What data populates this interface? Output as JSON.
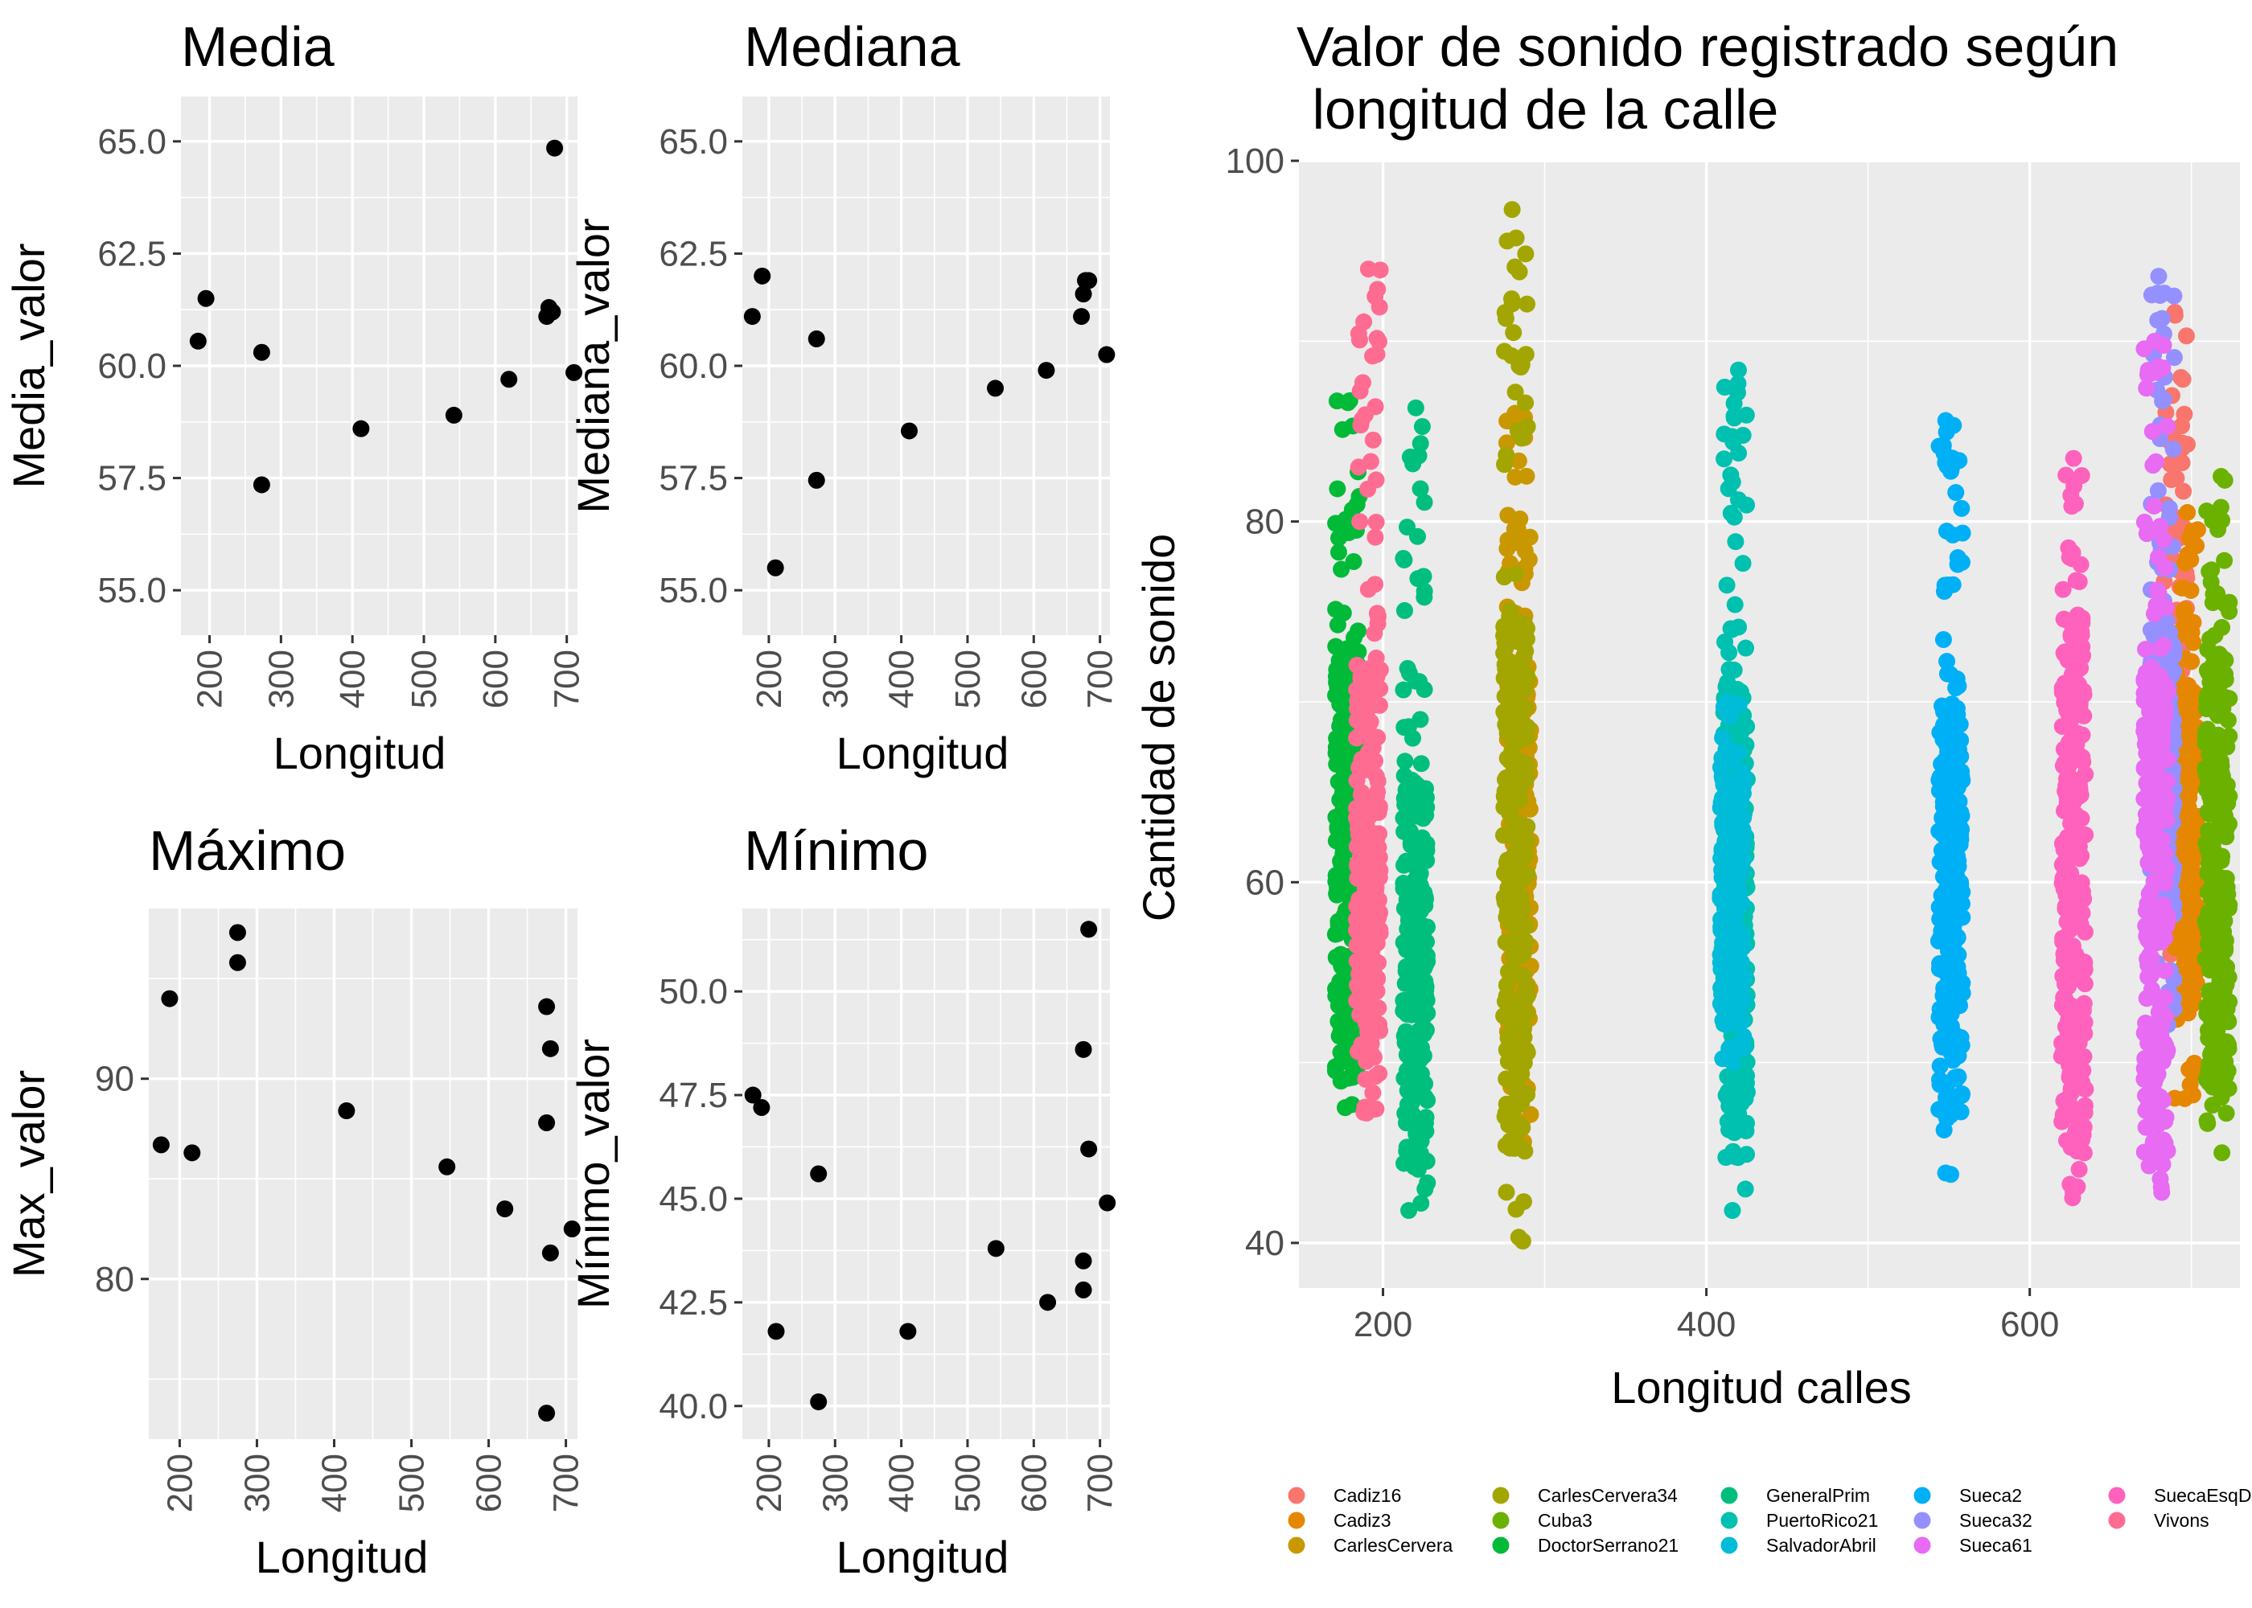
{
  "chart_data": [
    {
      "type": "scatter",
      "title": "Media",
      "xlabel": "Longitud",
      "ylabel": "Media_valor",
      "xlim": [
        160,
        715
      ],
      "ylim": [
        54.0,
        66.0
      ],
      "xticks": [
        200,
        300,
        400,
        500,
        600,
        700
      ],
      "yticks": [
        55.0,
        57.5,
        60.0,
        62.5,
        65.0
      ],
      "ytick_labels": [
        "55.0",
        "57.5",
        "60.0",
        "62.5",
        "65.0"
      ],
      "grid": true,
      "points": [
        {
          "x": 184,
          "y": 60.55
        },
        {
          "x": 195,
          "y": 61.5
        },
        {
          "x": 273,
          "y": 60.3
        },
        {
          "x": 273,
          "y": 57.35
        },
        {
          "x": 412,
          "y": 58.6
        },
        {
          "x": 542,
          "y": 58.9
        },
        {
          "x": 619,
          "y": 59.7
        },
        {
          "x": 672,
          "y": 61.1
        },
        {
          "x": 675,
          "y": 61.3
        },
        {
          "x": 680,
          "y": 61.2
        },
        {
          "x": 683,
          "y": 64.85
        },
        {
          "x": 710,
          "y": 59.85
        }
      ]
    },
    {
      "type": "scatter",
      "title": "Mediana",
      "xlabel": "Longitud",
      "ylabel": "Mediana_valor",
      "xlim": [
        160,
        715
      ],
      "ylim": [
        54.0,
        66.0
      ],
      "xticks": [
        200,
        300,
        400,
        500,
        600,
        700
      ],
      "yticks": [
        55.0,
        57.5,
        60.0,
        62.5,
        65.0
      ],
      "ytick_labels": [
        "55.0",
        "57.5",
        "60.0",
        "62.5",
        "65.0"
      ],
      "grid": true,
      "points": [
        {
          "x": 175,
          "y": 61.1
        },
        {
          "x": 190,
          "y": 62.0
        },
        {
          "x": 210,
          "y": 55.5
        },
        {
          "x": 272,
          "y": 60.6
        },
        {
          "x": 272,
          "y": 57.45
        },
        {
          "x": 412,
          "y": 58.55
        },
        {
          "x": 542,
          "y": 59.5
        },
        {
          "x": 619,
          "y": 59.9
        },
        {
          "x": 672,
          "y": 61.1
        },
        {
          "x": 675,
          "y": 61.6
        },
        {
          "x": 678,
          "y": 61.9
        },
        {
          "x": 683,
          "y": 61.9
        },
        {
          "x": 710,
          "y": 60.25
        }
      ]
    },
    {
      "type": "scatter",
      "title": "Máximo",
      "xlabel": "Longitud",
      "ylabel": "Max_valor",
      "xlim": [
        160,
        715
      ],
      "ylim": [
        72.0,
        98.5
      ],
      "xticks": [
        200,
        300,
        400,
        500,
        600,
        700
      ],
      "yticks": [
        80,
        90
      ],
      "ytick_labels": [
        "80",
        "90"
      ],
      "grid": true,
      "points": [
        {
          "x": 176,
          "y": 86.7
        },
        {
          "x": 187,
          "y": 94.0
        },
        {
          "x": 216,
          "y": 86.3
        },
        {
          "x": 275,
          "y": 97.3
        },
        {
          "x": 275,
          "y": 95.8
        },
        {
          "x": 416,
          "y": 88.4
        },
        {
          "x": 546,
          "y": 85.6
        },
        {
          "x": 621,
          "y": 83.5
        },
        {
          "x": 675,
          "y": 93.6
        },
        {
          "x": 675,
          "y": 87.8
        },
        {
          "x": 680,
          "y": 91.5
        },
        {
          "x": 680,
          "y": 81.3
        },
        {
          "x": 675,
          "y": 73.3
        },
        {
          "x": 708,
          "y": 82.5
        }
      ]
    },
    {
      "type": "scatter",
      "title": "Mínimo",
      "xlabel": "Longitud",
      "ylabel": "Mínimo_valor",
      "xlim": [
        160,
        715
      ],
      "ylim": [
        39.2,
        52.0
      ],
      "xticks": [
        200,
        300,
        400,
        500,
        600,
        700
      ],
      "yticks": [
        40.0,
        42.5,
        45.0,
        47.5,
        50.0
      ],
      "ytick_labels": [
        "40.0",
        "42.5",
        "45.0",
        "47.5",
        "50.0"
      ],
      "grid": true,
      "points": [
        {
          "x": 176,
          "y": 47.5
        },
        {
          "x": 189,
          "y": 47.2
        },
        {
          "x": 211,
          "y": 41.8
        },
        {
          "x": 275,
          "y": 45.6
        },
        {
          "x": 275,
          "y": 40.1
        },
        {
          "x": 410,
          "y": 41.8
        },
        {
          "x": 543,
          "y": 43.8
        },
        {
          "x": 621,
          "y": 42.5
        },
        {
          "x": 675,
          "y": 48.6
        },
        {
          "x": 675,
          "y": 43.5
        },
        {
          "x": 675,
          "y": 42.8
        },
        {
          "x": 683,
          "y": 51.5
        },
        {
          "x": 683,
          "y": 46.2
        },
        {
          "x": 711,
          "y": 44.9
        }
      ]
    },
    {
      "type": "scatter",
      "title": "Valor de sonido registrado según\n longitud de la calle",
      "title_lines": [
        "Valor de sonido registrado según",
        " longitud de la calle"
      ],
      "xlabel": "Longitud calles",
      "ylabel": "Cantidad de sonido",
      "xlim": [
        148,
        730
      ],
      "ylim": [
        37.5,
        100.0
      ],
      "xticks": [
        200,
        400,
        600
      ],
      "yticks": [
        40,
        60,
        80,
        100
      ],
      "ytick_labels": [
        "40",
        "60",
        "80",
        "100"
      ],
      "grid": true,
      "legend_position": "bottom",
      "series": [
        {
          "name": "Cadiz16",
          "color": "#F8766D",
          "x": 690,
          "ymin": 56.0,
          "ymax": 91.6,
          "dense_min": 58.0,
          "dense_max": 74.0
        },
        {
          "name": "Cadiz3",
          "color": "#E58700",
          "x": 697,
          "ymin": 48.0,
          "ymax": 80.5,
          "dense_min": 53.0,
          "dense_max": 71.0
        },
        {
          "name": "CarlesCervera",
          "color": "#C99800",
          "x": 284,
          "ymin": 45.6,
          "ymax": 86.0,
          "dense_min": 52.0,
          "dense_max": 72.0
        },
        {
          "name": "CarlesCervera34",
          "color": "#A3A500",
          "x": 282,
          "ymin": 40.1,
          "ymax": 97.3,
          "dense_min": 45.0,
          "dense_max": 75.0
        },
        {
          "name": "Cuba3",
          "color": "#6BB100",
          "x": 716,
          "ymin": 45.0,
          "ymax": 82.5,
          "dense_min": 48.0,
          "dense_max": 73.0
        },
        {
          "name": "DoctorSerrano21",
          "color": "#00BA38",
          "x": 178,
          "ymin": 47.5,
          "ymax": 86.7,
          "dense_min": 49.0,
          "dense_max": 73.0
        },
        {
          "name": "GeneralPrim",
          "color": "#00BF7D",
          "x": 220,
          "ymin": 41.8,
          "ymax": 86.3,
          "dense_min": 44.0,
          "dense_max": 66.0
        },
        {
          "name": "PuertoRico21",
          "color": "#00C0AF",
          "x": 418,
          "ymin": 41.8,
          "ymax": 88.4,
          "dense_min": 46.0,
          "dense_max": 71.0
        },
        {
          "name": "SalvadorAbril",
          "color": "#00BCD8",
          "x": 416,
          "ymin": 50.0,
          "ymax": 70.0,
          "dense_min": 52.0,
          "dense_max": 66.0
        },
        {
          "name": "Sueca2",
          "color": "#00B0F6",
          "x": 551,
          "ymin": 43.8,
          "ymax": 85.6,
          "dense_min": 47.0,
          "dense_max": 70.0
        },
        {
          "name": "Sueca32",
          "color": "#9590FF",
          "x": 682,
          "ymin": 52.0,
          "ymax": 93.6,
          "dense_min": 58.0,
          "dense_max": 74.0
        },
        {
          "name": "Sueca61",
          "color": "#E76BF3",
          "x": 678,
          "ymin": 42.8,
          "ymax": 90.0,
          "dense_min": 45.0,
          "dense_max": 72.0
        },
        {
          "name": "SuecaEsqDenia",
          "color": "#FF62BC",
          "x": 627,
          "ymin": 42.5,
          "ymax": 83.5,
          "dense_min": 45.0,
          "dense_max": 75.0
        },
        {
          "name": "Vivons",
          "color": "#FF6C91",
          "x": 191,
          "ymin": 47.2,
          "ymax": 94.0,
          "dense_min": 50.0,
          "dense_max": 72.0
        }
      ]
    }
  ]
}
